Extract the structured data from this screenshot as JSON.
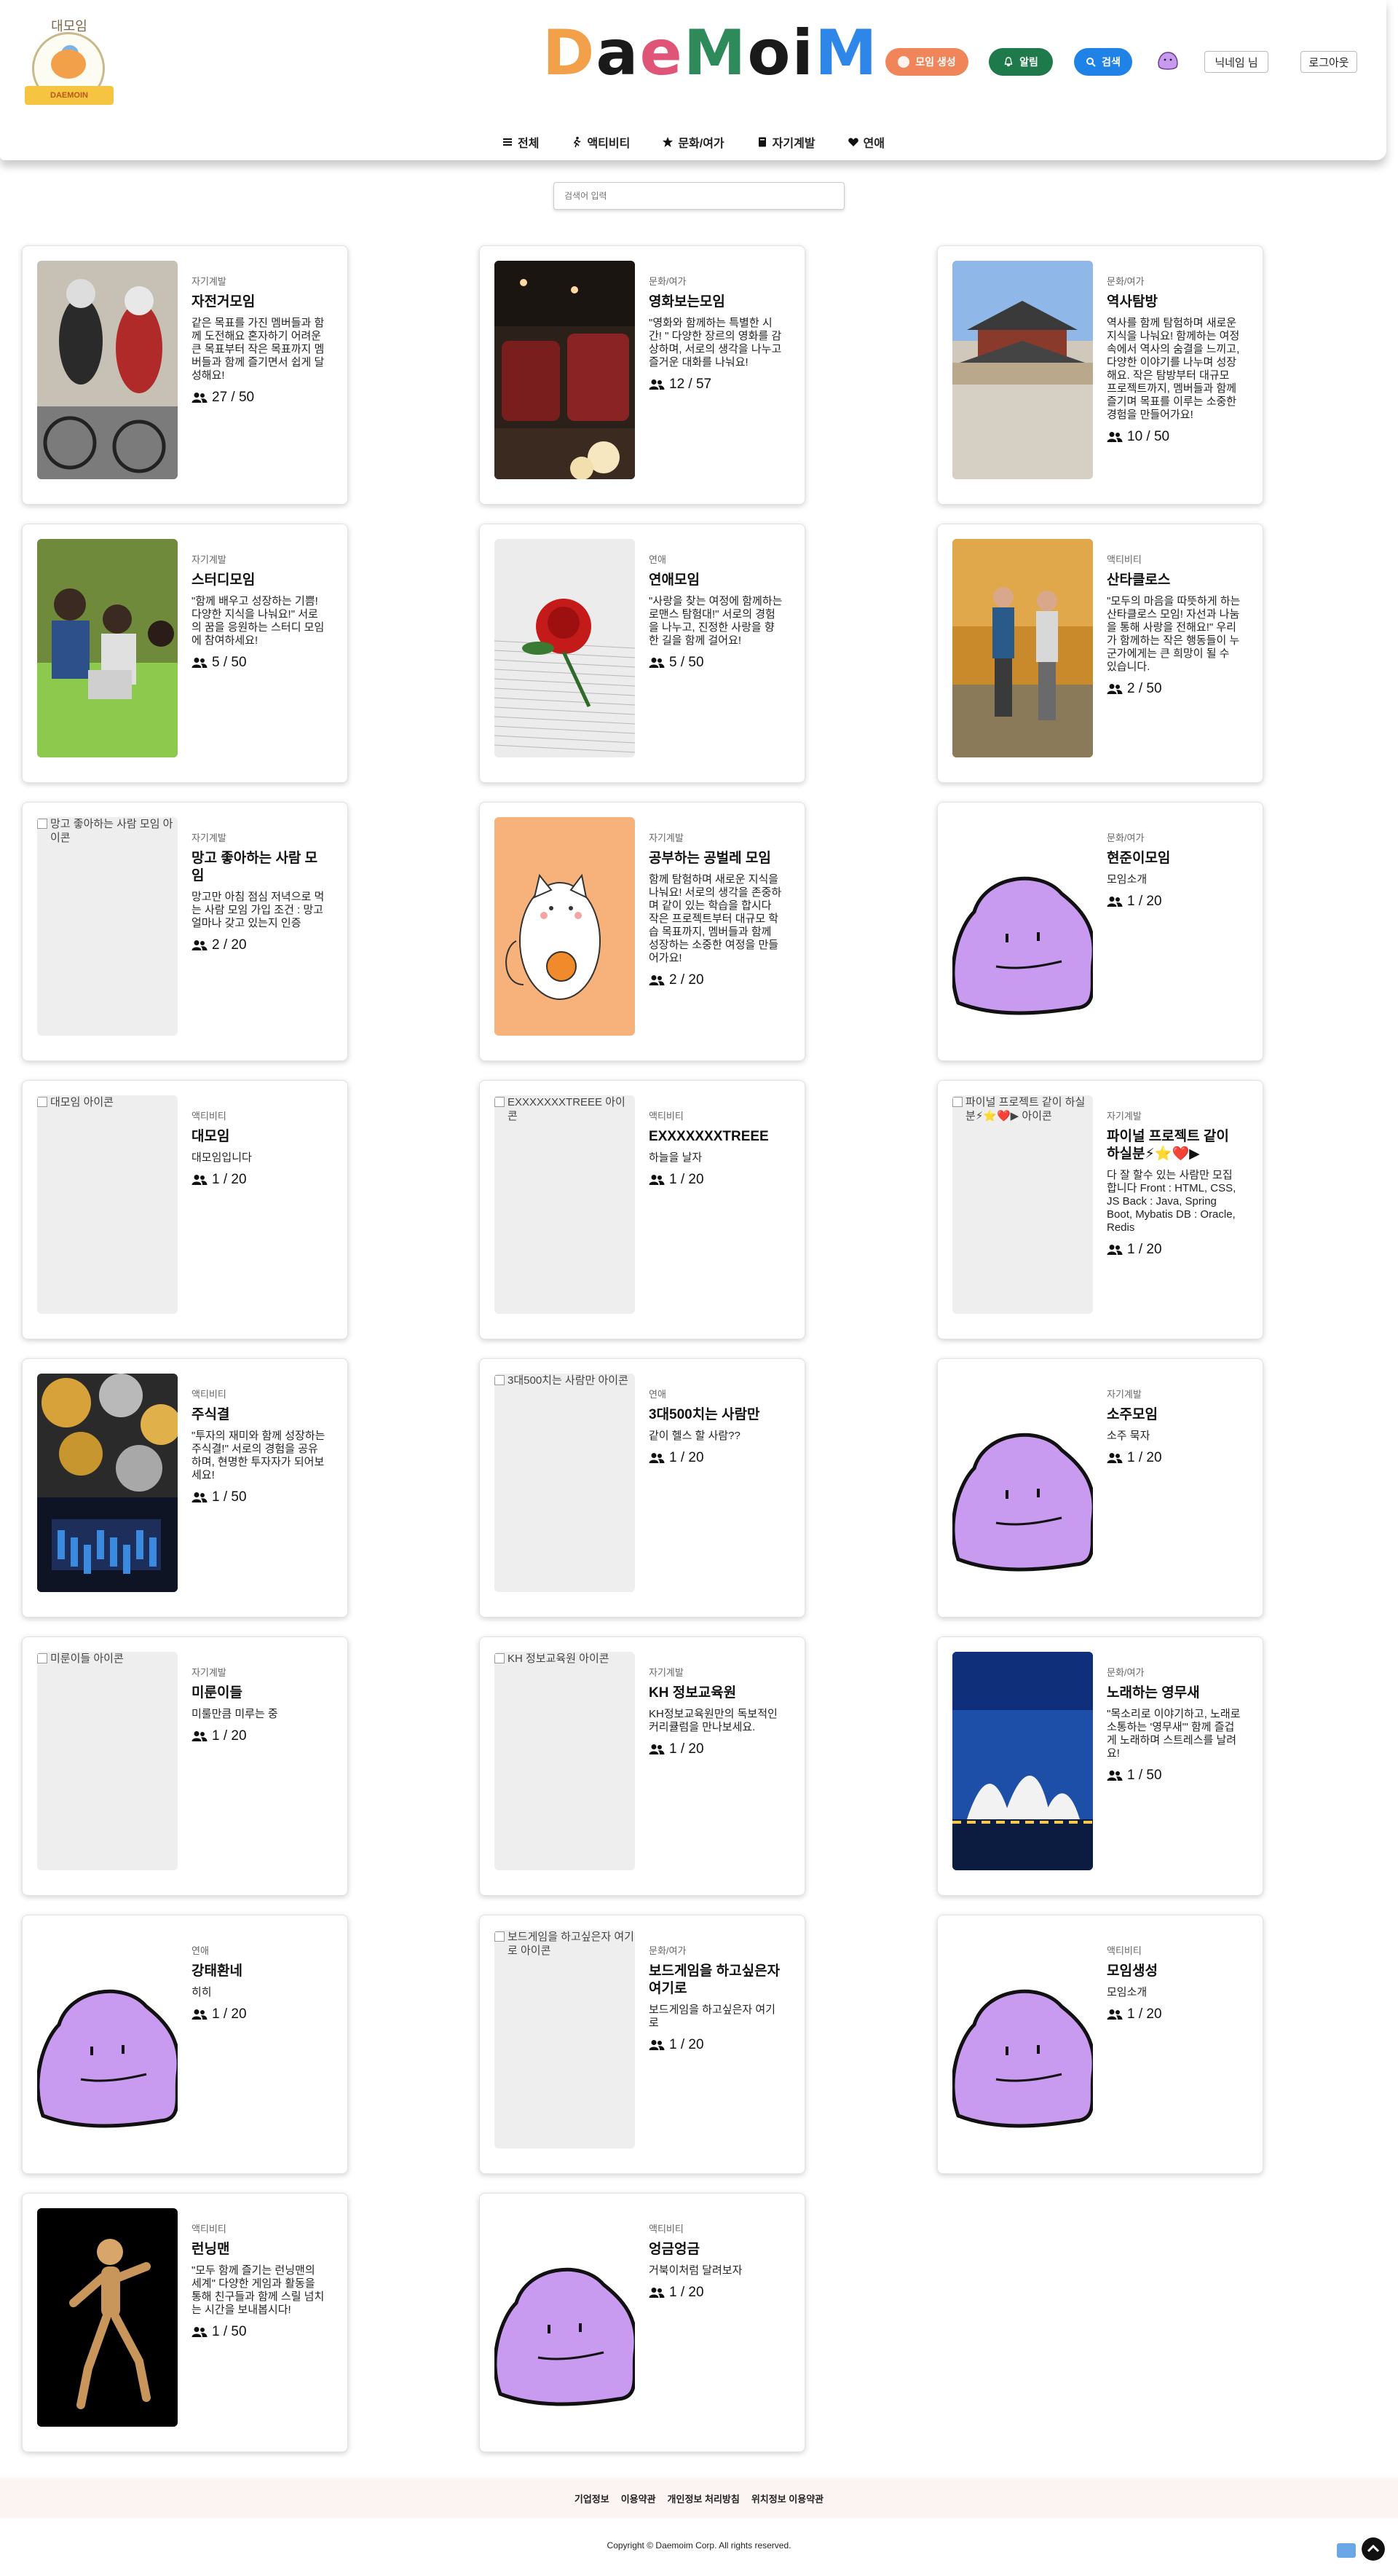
{
  "header": {
    "emblem_top_text": "대모임",
    "emblem_ribbon_text": "DAEMOIN",
    "logo_letters": [
      "D",
      "a",
      "e",
      "M",
      "o",
      "i",
      "M"
    ],
    "logo_colors": [
      "#f2a04a",
      "#1a1a1a",
      "#e05577",
      "#2e8a5b",
      "#1a1a1a",
      "#1a1a1a",
      "#2e86e8"
    ],
    "buttons": {
      "create_label": "모임 생성",
      "alarm_label": "알림",
      "search_label": "검색"
    },
    "button_colors": {
      "create": "#f0855a",
      "alarm": "#1e7a4a",
      "search": "#1f82e6"
    },
    "nickname": "닉네임 님",
    "logout_label": "로그아웃"
  },
  "nav": [
    {
      "label": "전체",
      "icon": "menu-icon"
    },
    {
      "label": "액티비티",
      "icon": "running-icon"
    },
    {
      "label": "문화/여가",
      "icon": "star-icon"
    },
    {
      "label": "자기계발",
      "icon": "book-icon"
    },
    {
      "label": "연애",
      "icon": "heart-icon"
    }
  ],
  "search": {
    "placeholder": "검색어 입력"
  },
  "cards": [
    {
      "category": "자기계발",
      "title": "자전거모임",
      "desc": "같은 목표를 가진 멤버들과 함께 도전해요 혼자하기 어려운 큰 목표부터 작은 목표까지 멤버들과 함께 즐기면서 쉽게 달성해요!",
      "count": "27 / 50",
      "thumb": "photo-cycling"
    },
    {
      "category": "문화/여가",
      "title": "영화보는모임",
      "desc": "\"영화와 함께하는 특별한 시간! \" 다양한 장르의 영화를 감상하며, 서로의 생각을 나누고 즐거운 대화를 나눠요!",
      "count": "12 / 57",
      "thumb": "photo-cinema"
    },
    {
      "category": "문화/여가",
      "title": "역사탐방",
      "desc": "역사를 함께 탐험하며 새로운 지식을 나눠요! 함께하는 여정 속에서 역사의 숨결을 느끼고, 다양한 이야기를 나누며 성장해요. 작은 탐방부터 대규모 프로젝트까지, 멤버들과 함께 즐기며 목표를 이루는 소중한 경험을 만들어가요!",
      "count": "10 / 50",
      "thumb": "photo-palace"
    },
    {
      "category": "자기계발",
      "title": "스터디모임",
      "desc": "\"함께 배우고 성장하는 기쁨! 다양한 지식을 나눠요!\" 서로의 꿈을 응원하는 스터디 모임에 참여하세요!",
      "count": "5 / 50",
      "thumb": "photo-study"
    },
    {
      "category": "연애",
      "title": "연애모임",
      "desc": "\"사랑을 찾는 여정에 함께하는 로맨스 탐험대!\" 서로의 경험을 나누고, 진정한 사랑을 향한 길을 함께 걸어요!",
      "count": "5 / 50",
      "thumb": "photo-rose"
    },
    {
      "category": "액티비티",
      "title": "산타클로스",
      "desc": "\"모두의 마음을 따뜻하게 하는 산타클로스 모임! 자선과 나눔을 통해 사랑을 전해요!\" 우리가 함께하는 작은 행동들이 누군가에게는 큰 희망이 될 수 있습니다.",
      "count": "2 / 50",
      "thumb": "photo-hikers"
    },
    {
      "category": "자기계발",
      "title": "망고 좋아하는 사람 모임",
      "desc": "망고만 아침 점심 저녁으로 먹는 사람 모임 가입 조건 : 망고 얼마나 갖고 있는지 인증",
      "count": "2 / 20",
      "thumb": "broken",
      "alt": "망고 좋아하는 사람 모임 아이콘"
    },
    {
      "category": "자기계발",
      "title": "공부하는 공벌레 모임",
      "desc": "함께 탐험하며 새로운 지식을 나눠요! 서로의 생각을 존중하며 같이 있는 학습을 합시다 작은 프로젝트부터 대규모 학습 목표까지, 멤버들과 함께 성장하는 소중한 여정을 만들어가요!",
      "count": "2 / 20",
      "thumb": "illus-cat"
    },
    {
      "category": "문화/여가",
      "title": "현준이모임",
      "desc": "모임소개",
      "count": "1 / 20",
      "thumb": "blob"
    },
    {
      "category": "액티비티",
      "title": "대모임",
      "desc": "대모임입니다",
      "count": "1 / 20",
      "thumb": "broken",
      "alt": "대모임 아이콘"
    },
    {
      "category": "액티비티",
      "title": "EXXXXXXXTREEE",
      "desc": "하늘을 날자",
      "count": "1 / 20",
      "thumb": "broken",
      "alt": "EXXXXXXXTREEE 아이콘"
    },
    {
      "category": "자기계발",
      "title": "파이널 프로젝트 같이 하실분⚡⭐❤️▶",
      "desc": "다 잘 할수 있는 사람만 모집합니다 Front : HTML, CSS, JS Back : Java, Spring Boot, Mybatis DB : Oracle, Redis",
      "count": "1 / 20",
      "thumb": "broken",
      "alt": "파이널 프로젝트 같이 하실분⚡⭐❤️▶ 아이콘"
    },
    {
      "category": "액티비티",
      "title": "주식결",
      "desc": "\"투자의 재미와 함께 성장하는 주식결!\" 서로의 경험을 공유하며, 현명한 투자자가 되어보세요!",
      "count": "1 / 50",
      "thumb": "photo-coins"
    },
    {
      "category": "연애",
      "title": "3대500치는 사람만",
      "desc": "같이 헬스 할 사람??",
      "count": "1 / 20",
      "thumb": "broken",
      "alt": "3대500치는 사람만 아이콘"
    },
    {
      "category": "자기계발",
      "title": "소주모임",
      "desc": "소주 묵자",
      "count": "1 / 20",
      "thumb": "blob"
    },
    {
      "category": "자기계발",
      "title": "미룬이들",
      "desc": "미룰만큼 미루는 중",
      "count": "1 / 20",
      "thumb": "broken",
      "alt": "미룬이들 아이콘"
    },
    {
      "category": "자기계발",
      "title": "KH 정보교육원",
      "desc": "KH정보교육원만의 독보적인 커리큘럼을 만나보세요.",
      "count": "1 / 20",
      "thumb": "broken",
      "alt": "KH 정보교육원 아이콘"
    },
    {
      "category": "문화/여가",
      "title": "노래하는 영무새",
      "desc": "\"목소리로 이야기하고, 노래로 소통하는 '영무새'\" 함께 즐겁게 노래하며 스트레스를 날려요!",
      "count": "1 / 50",
      "thumb": "photo-opera"
    },
    {
      "category": "연애",
      "title": "강태환네",
      "desc": "히히",
      "count": "1 / 20",
      "thumb": "blob"
    },
    {
      "category": "문화/여가",
      "title": "보드게임을 하고싶은자 여기로",
      "desc": "보드게임을 하고싶은자 여기로",
      "count": "1 / 20",
      "thumb": "broken",
      "alt": "보드게임을 하고싶은자 여기로 아이콘"
    },
    {
      "category": "액티비티",
      "title": "모임생성",
      "desc": "모임소개",
      "count": "1 / 20",
      "thumb": "blob"
    },
    {
      "category": "액티비티",
      "title": "런닝맨",
      "desc": "\"모두 함께 즐기는 런닝맨의 세계\" 다양한 게임과 활동을 통해 친구들과 함께 스릴 넘치는 시간을 보내봅시다!",
      "count": "1 / 50",
      "thumb": "photo-mannequin"
    },
    {
      "category": "액티비티",
      "title": "엉금엉금",
      "desc": "거북이처럼 달려보자",
      "count": "1 / 20",
      "thumb": "blob"
    }
  ],
  "footer": {
    "links": [
      "기업정보",
      "이용약관",
      "개인정보 처리방침",
      "위치정보 이용약관"
    ],
    "copyright": "Copyright © Daemoim Corp. All rights reserved."
  }
}
